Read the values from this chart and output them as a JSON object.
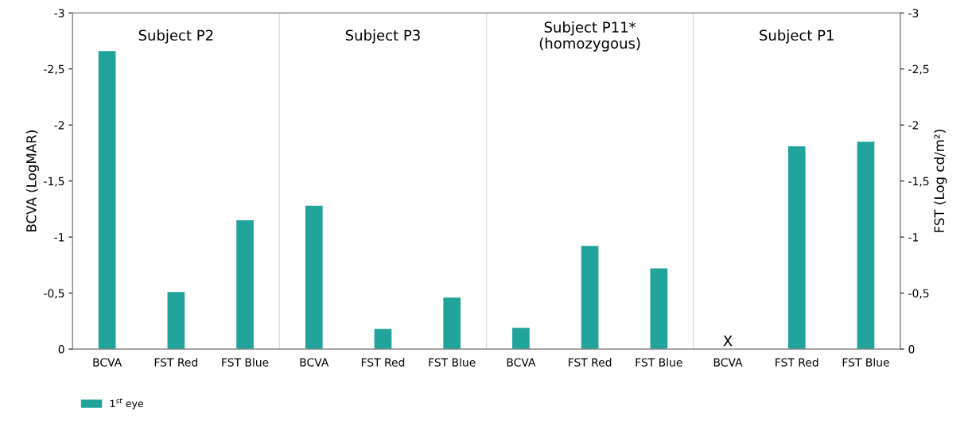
{
  "chart_data": {
    "type": "bar",
    "ylabel": "BCVA (LogMAR)",
    "y2label": "FST (Log cd/m²)",
    "categories": [
      "BCVA",
      "FST Red",
      "FST Blue",
      "BCVA",
      "FST Red",
      "FST Blue",
      "BCVA",
      "FST Red",
      "FST Blue",
      "BCVA",
      "FST Red",
      "FST Blue"
    ],
    "series": [
      {
        "name": "1$^{st}$ eye",
        "color": "#20a39a",
        "values": [
          -2.66,
          -0.51,
          -1.15,
          -1.28,
          -0.18,
          -0.46,
          -0.19,
          -0.92,
          -0.72,
          null,
          -1.81,
          -1.85
        ]
      }
    ],
    "ylim": [
      0,
      -3
    ],
    "yticks": [
      0,
      {
        "value": -0.5,
        "label": "-0,5"
      },
      -1,
      {
        "value": -1.5,
        "label": "-1,5"
      },
      -2,
      {
        "value": -2.5,
        "label": "-2,5"
      },
      -3
    ],
    "y2lim": [
      0,
      -3
    ],
    "y2ticks": [
      0,
      {
        "value": -0.5,
        "label": "-0,5"
      },
      -1,
      {
        "value": -1.5,
        "label": "-1,5"
      },
      -2,
      {
        "value": -2.5,
        "label": "-2,5"
      },
      -3
    ],
    "annotations": [
      "Subject P2",
      "Subject P3",
      "Subject P11*\n(homozygous)",
      "Subject P1",
      "X"
    ],
    "legend": "bottom left",
    "grid": false
  }
}
